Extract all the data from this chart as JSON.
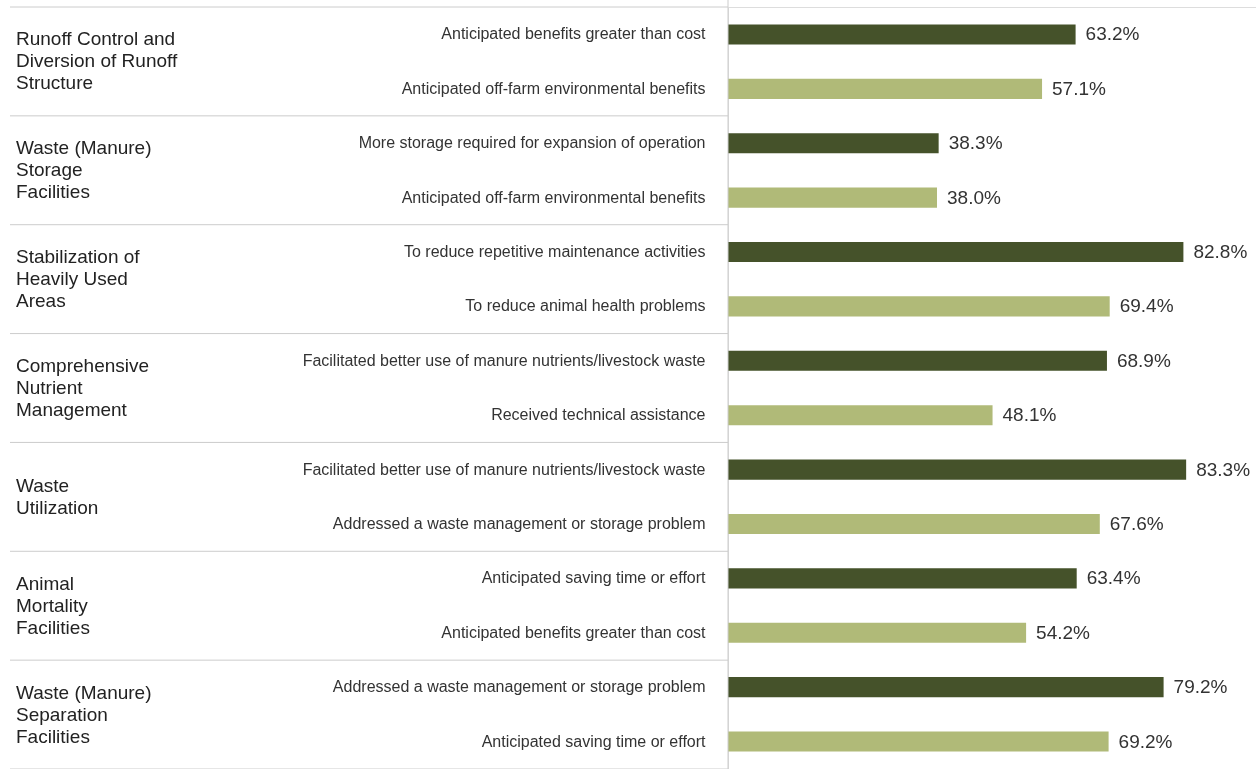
{
  "chart_data": {
    "type": "bar",
    "orientation": "horizontal",
    "categories": [
      "Anticipated benefits greater than cost",
      "Anticipated off-farm environmental benefits",
      "More storage required for expansion of operation",
      "Anticipated off-farm environmental benefits",
      "To reduce repetitive maintenance activities",
      "To reduce animal health problems",
      "Facilitated better use of manure nutrients/livestock waste",
      "Received technical assistance",
      "Facilitated better use of manure nutrients/livestock waste",
      "Addressed a waste management or storage problem",
      "Anticipated saving time or effort",
      "Anticipated benefits greater than cost",
      "Addressed a waste management or storage problem",
      "Anticipated saving time or effort"
    ],
    "values": [
      63.2,
      57.1,
      38.3,
      38.0,
      82.8,
      69.4,
      68.9,
      48.1,
      83.3,
      67.6,
      63.4,
      54.2,
      79.2,
      69.2
    ],
    "value_labels": [
      "63.2%",
      "57.1%",
      "38.3%",
      "38.0%",
      "82.8%",
      "69.4%",
      "68.9%",
      "48.1%",
      "83.3%",
      "67.6%",
      "63.4%",
      "54.2%",
      "79.2%",
      "69.2%"
    ],
    "colors": [
      "#45522a",
      "#b0ba78",
      "#45522a",
      "#b0ba78",
      "#45522a",
      "#b0ba78",
      "#45522a",
      "#b0ba78",
      "#45522a",
      "#b0ba78",
      "#45522a",
      "#b0ba78",
      "#45522a",
      "#b0ba78"
    ],
    "xlim": [
      0,
      96
    ],
    "annotations": [
      "Runoff Control and\nDiversion of Runoff\nStructure",
      "Waste (Manure)\nStorage\nFacilities",
      "Stabilization of\nHeavily Used\nAreas",
      "Comprehensive\nNutrient\nManagement",
      "Waste\nUtilization",
      "Animal\nMortality\nFacilities",
      "Waste (Manure)\nSeparation\nFacilities"
    ]
  }
}
